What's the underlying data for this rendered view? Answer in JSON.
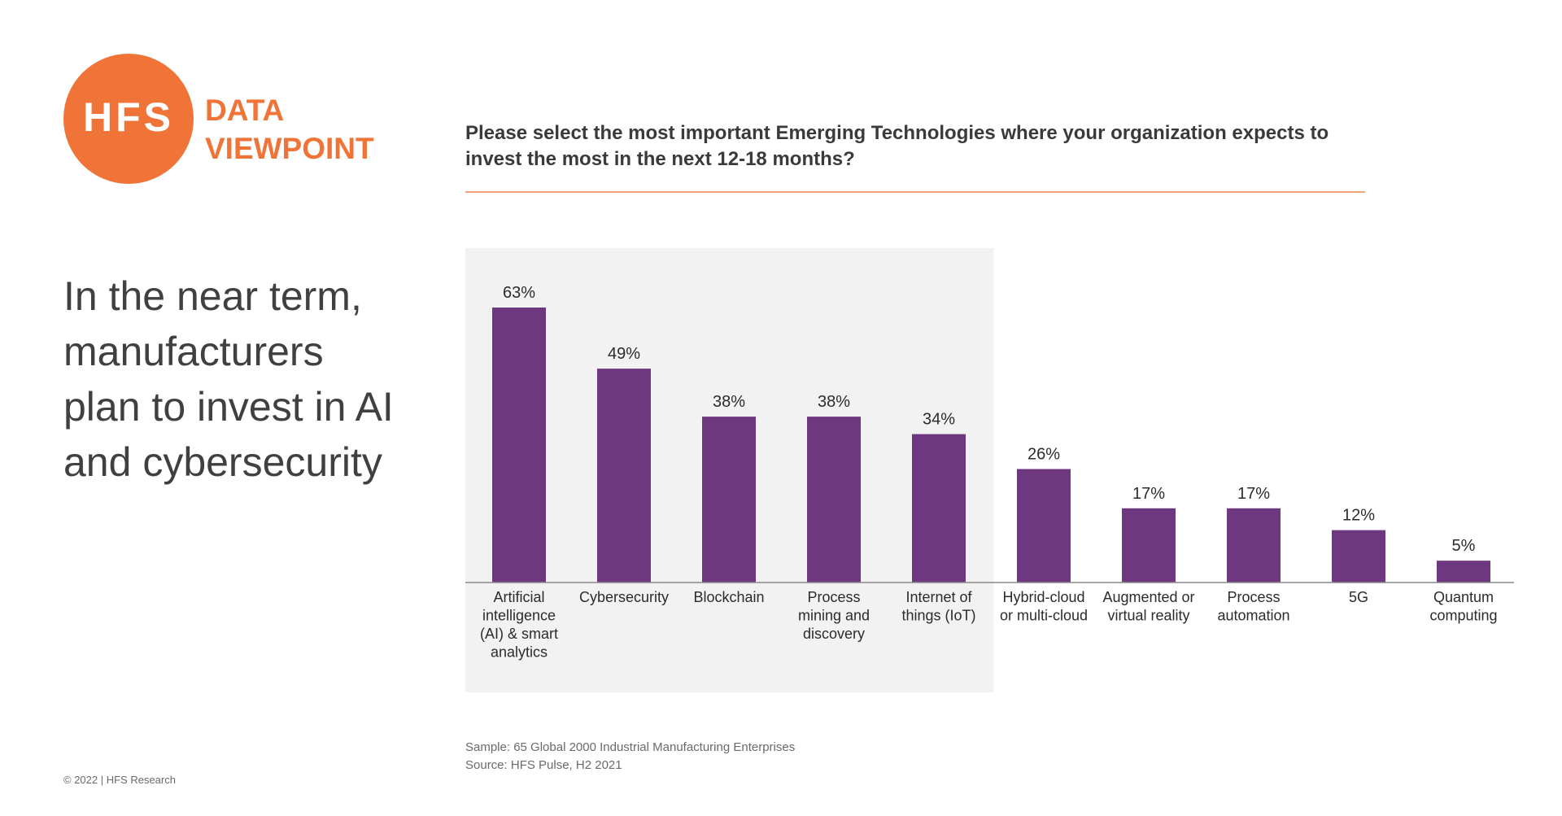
{
  "logo": {
    "mark": "HFS",
    "line1": "DATA",
    "line2": "VIEWPOINT"
  },
  "question": "Please select the most important Emerging Technologies where your organization expects to invest the most in the next 12-18 months?",
  "headline": "In the near term, manufacturers plan to invest in AI and cybersecurity",
  "source": {
    "sample": "Sample: 65 Global 2000 Industrial Manufacturing Enterprises",
    "source": "Source: HFS Pulse, H2 2021"
  },
  "copyright": "© 2022 | HFS Research",
  "colors": {
    "accent": "#f07438",
    "bar": "#6e3880",
    "highlight_bg": "#f2f2f2"
  },
  "chart_data": {
    "type": "bar",
    "categories": [
      [
        "Artificial",
        "intelligence",
        "(AI) & smart",
        "analytics"
      ],
      [
        "Cybersecurity"
      ],
      [
        "Blockchain"
      ],
      [
        "Process",
        "mining and",
        "discovery"
      ],
      [
        "Internet of",
        "things (IoT)"
      ],
      [
        "Hybrid-cloud",
        "or multi-cloud"
      ],
      [
        "Augmented or",
        "virtual reality"
      ],
      [
        "Process",
        "automation"
      ],
      [
        "5G"
      ],
      [
        "Quantum",
        "computing"
      ]
    ],
    "values": [
      63,
      49,
      38,
      38,
      34,
      26,
      17,
      17,
      12,
      5
    ],
    "value_labels": [
      "63%",
      "49%",
      "38%",
      "38%",
      "34%",
      "26%",
      "17%",
      "17%",
      "12%",
      "5%"
    ],
    "highlighted_count": 5,
    "ylim": [
      0,
      70
    ],
    "grid": false
  }
}
